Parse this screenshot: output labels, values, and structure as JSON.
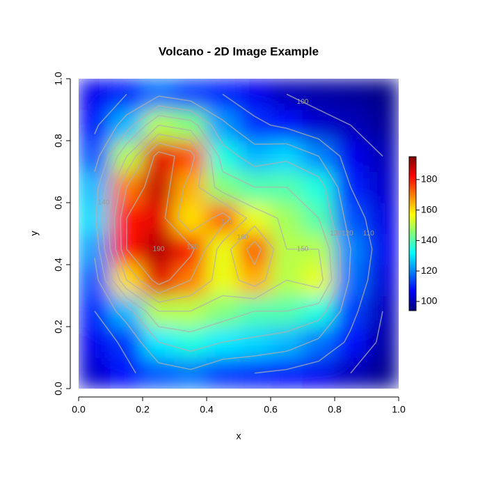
{
  "chart_data": {
    "type": "heatmap",
    "title": "Volcano - 2D Image Example",
    "x_label": "x",
    "y_label": "y",
    "x": [
      0.05,
      0.15,
      0.25,
      0.35,
      0.45,
      0.55,
      0.65,
      0.75,
      0.85,
      0.95
    ],
    "y": [
      0.05,
      0.15,
      0.25,
      0.35,
      0.45,
      0.55,
      0.65,
      0.75,
      0.85,
      0.95
    ],
    "z": [
      [
        102,
        108,
        115,
        118,
        112,
        110,
        108,
        105,
        100,
        96
      ],
      [
        105,
        112,
        130,
        135,
        130,
        128,
        125,
        118,
        108,
        98
      ],
      [
        110,
        125,
        150,
        150,
        145,
        140,
        140,
        135,
        113,
        100
      ],
      [
        115,
        160,
        185,
        170,
        155,
        165,
        150,
        155,
        118,
        103
      ],
      [
        122,
        180,
        190,
        183,
        155,
        175,
        150,
        150,
        120,
        105
      ],
      [
        128,
        180,
        185,
        160,
        175,
        155,
        148,
        140,
        115,
        104
      ],
      [
        125,
        170,
        188,
        165,
        145,
        140,
        140,
        135,
        110,
        102
      ],
      [
        115,
        150,
        185,
        175,
        135,
        125,
        128,
        120,
        105,
        100
      ],
      [
        108,
        125,
        150,
        145,
        122,
        112,
        108,
        102,
        100,
        97
      ],
      [
        105,
        110,
        118,
        113,
        110,
        105,
        100,
        98,
        97,
        95
      ]
    ],
    "xlim": [
      0,
      1
    ],
    "ylim": [
      0,
      1
    ],
    "xticks": [
      {
        "value": 0,
        "label": "0.0"
      },
      0.2,
      0.4,
      0.6,
      0.8,
      {
        "value": 1,
        "label": "1.0"
      }
    ],
    "yticks": [
      {
        "value": 0,
        "label": "0.0"
      },
      0.2,
      0.4,
      0.6,
      0.8,
      {
        "value": 1,
        "label": "1.0"
      }
    ],
    "zlim": [
      94,
      195
    ],
    "zticks": [
      100,
      120,
      140,
      160,
      180
    ],
    "colorscale": [
      "#00007f",
      "#0000ff",
      "#007fff",
      "#00ffff",
      "#7fff7f",
      "#ffff00",
      "#ff7f00",
      "#ff0000",
      "#7f0000"
    ],
    "contour_levels": [
      100,
      110,
      120,
      130,
      140,
      150,
      160,
      170,
      180,
      190
    ]
  }
}
